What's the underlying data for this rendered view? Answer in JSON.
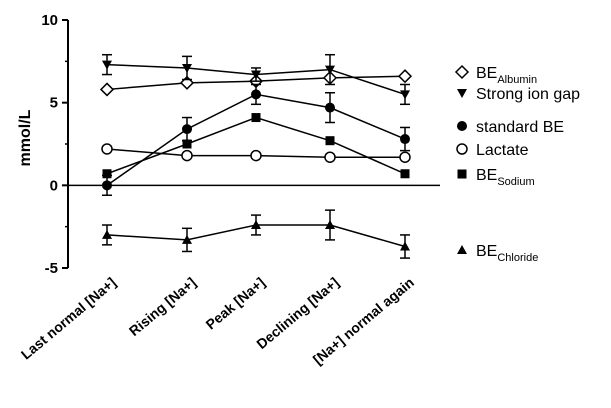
{
  "chart_data": {
    "type": "line",
    "ylabel": "mmol/L",
    "ylim": [
      -5,
      10
    ],
    "yticks": [
      "10",
      "5",
      "0",
      "-5"
    ],
    "categories": [
      "Last normal [Na+]",
      "Rising [Na+]",
      "Peak [Na+]",
      "Declining [Na+]",
      "[Na+] normal again"
    ],
    "reference_line": 0,
    "legend_position": "right",
    "series": [
      {
        "key": "albumin",
        "name_main": "BE",
        "name_sub": "Albumin",
        "marker": "diamond-open",
        "values": [
          5.8,
          6.2,
          6.3,
          6.5,
          6.6
        ],
        "errors": [
          0,
          0,
          0,
          0,
          0
        ]
      },
      {
        "key": "strong_ion_gap",
        "name_main": "Strong ion gap",
        "name_sub": "",
        "marker": "triangle-down",
        "values": [
          7.3,
          7.1,
          6.7,
          7.0,
          5.5
        ],
        "errors": [
          0.6,
          0.7,
          0.4,
          0.9,
          0.6
        ]
      },
      {
        "key": "standard_be",
        "name_main": "standard BE",
        "name_sub": "",
        "marker": "circle-filled",
        "values": [
          0.0,
          3.4,
          5.5,
          4.7,
          2.8
        ],
        "errors": [
          0.6,
          0.7,
          0.6,
          0.9,
          0.7
        ]
      },
      {
        "key": "lactate",
        "name_main": "Lactate",
        "name_sub": "",
        "marker": "circle-open",
        "values": [
          2.2,
          1.8,
          1.8,
          1.7,
          1.7
        ],
        "errors": [
          0,
          0,
          0,
          0,
          0
        ]
      },
      {
        "key": "sodium",
        "name_main": "BE",
        "name_sub": "Sodium",
        "marker": "square-filled",
        "values": [
          0.7,
          2.5,
          4.1,
          2.7,
          0.7
        ],
        "errors": [
          0,
          0,
          0,
          0,
          0
        ]
      },
      {
        "key": "chloride",
        "name_main": "BE",
        "name_sub": "Chloride",
        "marker": "triangle-up",
        "values": [
          -3.0,
          -3.3,
          -2.4,
          -2.4,
          -3.7
        ],
        "errors": [
          0.6,
          0.7,
          0.6,
          0.9,
          0.7
        ]
      }
    ],
    "legend_values_anchor": [
      6.6,
      5.5,
      3.2,
      1.8,
      0.4,
      -4.0
    ]
  }
}
